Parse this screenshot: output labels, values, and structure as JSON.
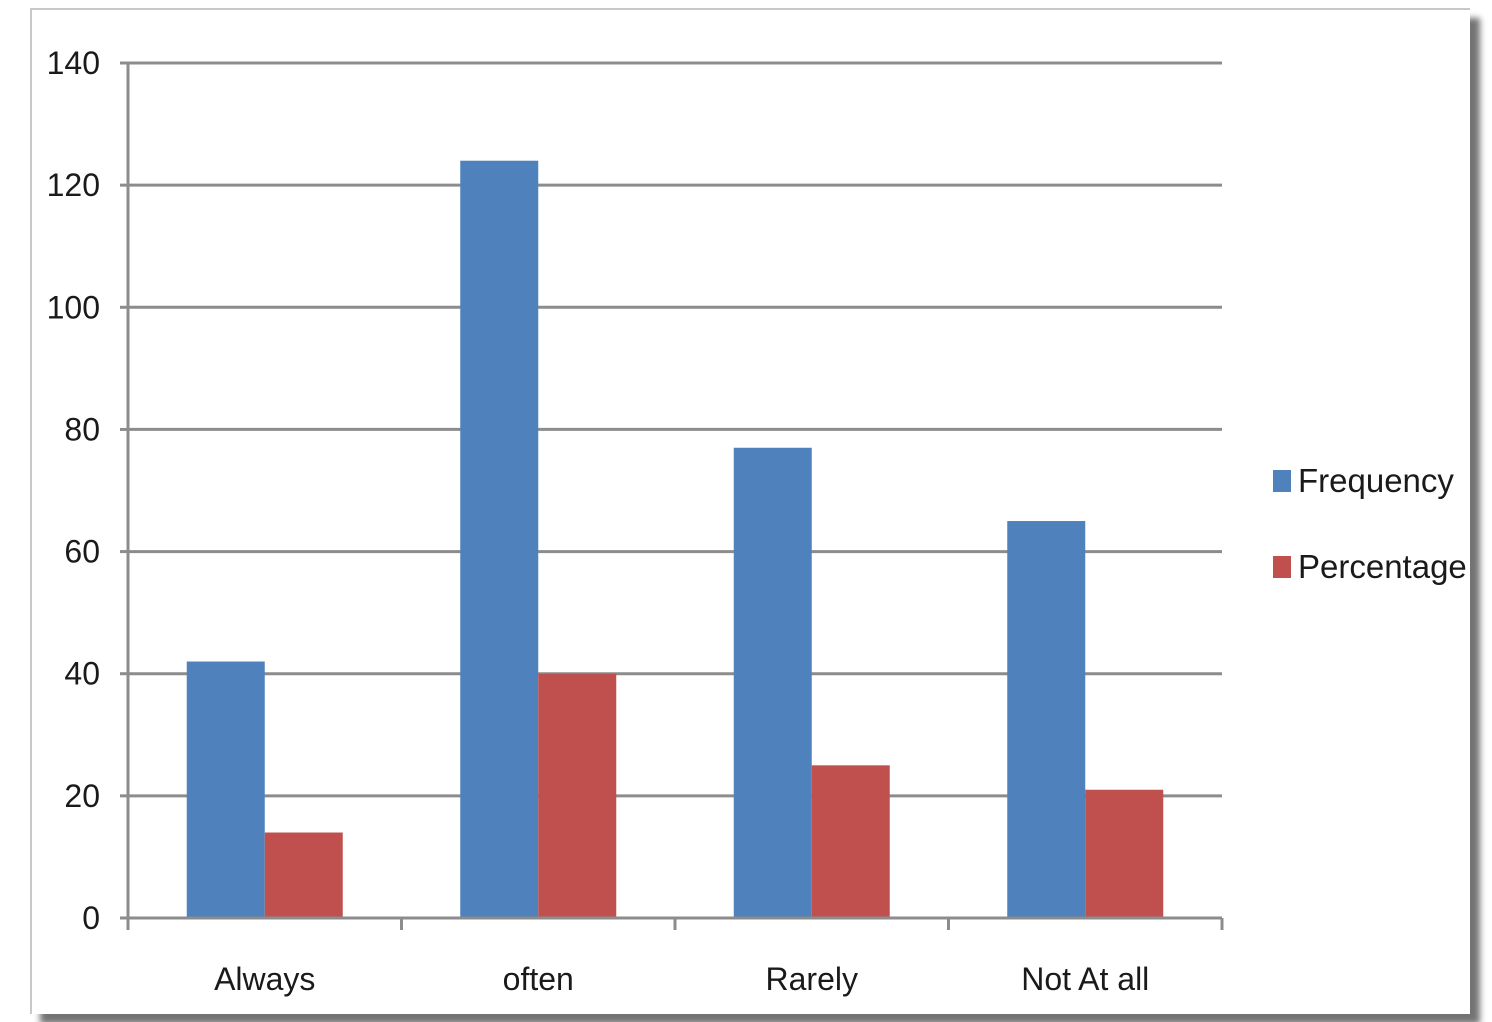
{
  "chart_data": {
    "type": "bar",
    "categories": [
      "Always",
      "often",
      "Rarely",
      "Not At all"
    ],
    "series": [
      {
        "name": "Frequency",
        "values": [
          42,
          124,
          77,
          65
        ],
        "color": "#4F81BD"
      },
      {
        "name": "Percentage",
        "values": [
          14,
          40,
          25,
          21
        ],
        "color": "#C0504D"
      }
    ],
    "yticks": [
      "0",
      "20",
      "40",
      "60",
      "80",
      "100",
      "120",
      "140"
    ],
    "ylim": [
      0,
      140
    ],
    "title": "",
    "xlabel": "",
    "ylabel": "",
    "grid": true,
    "legend_position": "right"
  }
}
